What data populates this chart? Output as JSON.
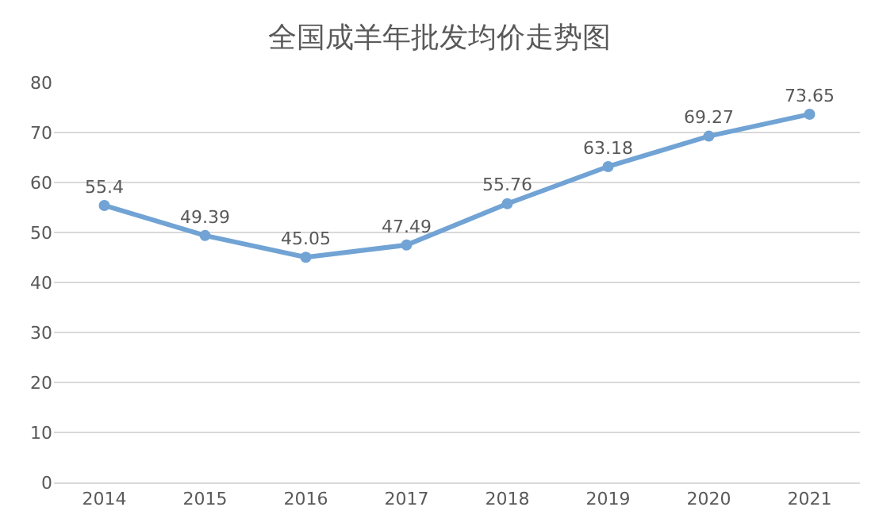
{
  "chart_data": {
    "type": "line",
    "title": "全国成羊年批发均价走势图",
    "categories": [
      "2014",
      "2015",
      "2016",
      "2017",
      "2018",
      "2019",
      "2020",
      "2021"
    ],
    "values": [
      55.4,
      49.39,
      45.05,
      47.49,
      55.76,
      63.18,
      69.27,
      73.65
    ],
    "color": "#71a3d4",
    "marker": "circle",
    "line_style": "solid",
    "data_labels": true,
    "ylim": [
      0,
      80
    ],
    "yticks": [
      0,
      10,
      20,
      30,
      40,
      50,
      60,
      70,
      80
    ],
    "grid": "y",
    "legend": false
  }
}
